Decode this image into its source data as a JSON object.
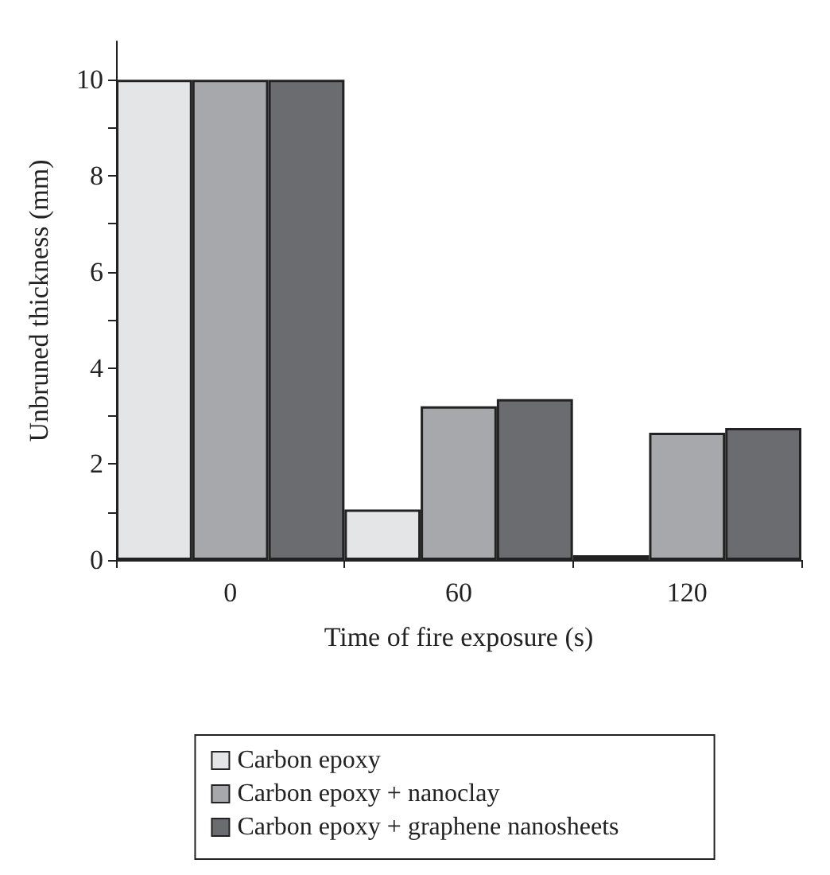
{
  "chart_data": {
    "type": "bar",
    "xlabel": "Time of fire exposure (s)",
    "ylabel": "Unbruned thickness (mm)",
    "categories": [
      "0",
      "60",
      "120"
    ],
    "series": [
      {
        "name": "Carbon epoxy",
        "color": "#e4e5e7",
        "values": [
          10,
          1.05,
          0.1
        ]
      },
      {
        "name": "Carbon epoxy + nanoclay",
        "color": "#a7a8ab",
        "values": [
          10,
          3.2,
          2.65
        ]
      },
      {
        "name": "Carbon epoxy + graphene nanosheets",
        "color": "#6b6c70",
        "values": [
          10,
          3.35,
          2.75
        ]
      }
    ],
    "ylim": [
      0,
      10.8
    ],
    "yticks": [
      0,
      {
        "value": 1,
        "label": null
      },
      2,
      {
        "value": 3,
        "label": null
      },
      4,
      {
        "value": 5,
        "label": null
      },
      6,
      {
        "value": 7,
        "label": null
      },
      8,
      {
        "value": 9,
        "label": null
      },
      10
    ],
    "grid": false,
    "legend": "bottom"
  }
}
